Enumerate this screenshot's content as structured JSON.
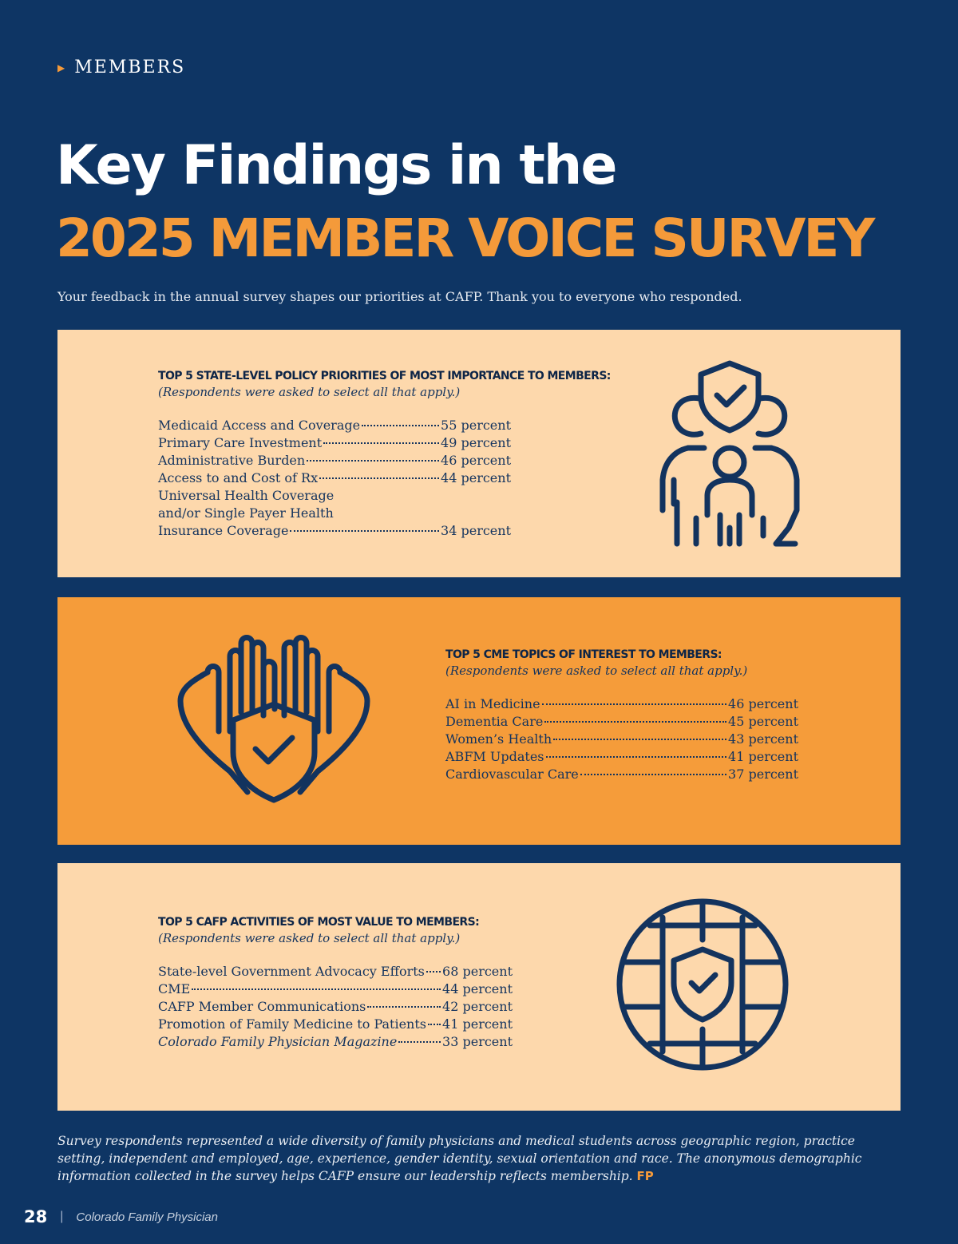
{
  "section": {
    "label": "MEMBERS"
  },
  "title": {
    "line1": "Key Findings in the",
    "line2": "2025 MEMBER VOICE SURVEY"
  },
  "subtitle": "Your feedback in the annual survey shapes our priorities at CAFP. Thank you to everyone who responded.",
  "policy": {
    "heading": "TOP 5 STATE-LEVEL POLICY PRIORITIES OF MOST IMPORTANCE TO MEMBERS:",
    "note": "(Respondents were asked to select all that apply.)",
    "items": [
      {
        "label": "Medicaid Access and Coverage",
        "value": "55 percent"
      },
      {
        "label": "Primary Care Investment",
        "value": "49 percent"
      },
      {
        "label": "Administrative Burden",
        "value": "46 percent"
      },
      {
        "label": "Access to and Cost of Rx",
        "value": "44 percent"
      }
    ],
    "last": {
      "line1": "Universal Health Coverage",
      "line2": "and/or Single Payer Health",
      "label": "Insurance Coverage",
      "value": "34 percent"
    },
    "icon": "shield-family-icon"
  },
  "cme": {
    "heading": "TOP 5 CME TOPICS OF INTEREST TO MEMBERS:",
    "note": "(Respondents were asked to select all that apply.)",
    "items": [
      {
        "label": "AI in Medicine",
        "value": "46 percent"
      },
      {
        "label": "Dementia Care",
        "value": "45 percent"
      },
      {
        "label": "Women’s Health",
        "value": "43 percent"
      },
      {
        "label": "ABFM Updates",
        "value": "41 percent"
      },
      {
        "label": "Cardiovascular Care",
        "value": "37 percent"
      }
    ],
    "icon": "hands-shield-icon"
  },
  "activities": {
    "heading": "TOP 5 CAFP ACTIVITIES OF MOST VALUE TO MEMBERS:",
    "note": "(Respondents were asked to select all that apply.)",
    "items": [
      {
        "label": "State-level Government Advocacy Efforts",
        "value": "68 percent"
      },
      {
        "label": "CME",
        "value": "44 percent"
      },
      {
        "label": "CAFP Member Communications",
        "value": "42 percent"
      },
      {
        "label": "Promotion of Family Medicine to Patients",
        "value": "41 percent"
      },
      {
        "label": "Colorado Family Physician Magazine",
        "value": "33 percent"
      }
    ],
    "icon": "globe-shield-icon"
  },
  "footnote": {
    "text": "Survey respondents represented a wide diversity of family physicians and medical students across geographic region, practice setting, independent and employed, age, experience, gender identity, sexual orientation and race. The anonymous demographic information collected in the survey helps CAFP ensure our leadership reflects membership.",
    "mark": "FP"
  },
  "footer": {
    "page_number": "28",
    "separator": "|",
    "publication": "Colorado Family Physician"
  },
  "colors": {
    "background": "#0e3564",
    "accent": "#f49a3a",
    "panel_light": "#fdd8ac",
    "panel_orange": "#f59c3a",
    "icon_stroke": "#13335e"
  }
}
